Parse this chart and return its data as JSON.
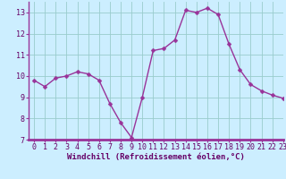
{
  "x": [
    0,
    1,
    2,
    3,
    4,
    5,
    6,
    7,
    8,
    9,
    10,
    11,
    12,
    13,
    14,
    15,
    16,
    17,
    18,
    19,
    20,
    21,
    22,
    23
  ],
  "y": [
    9.8,
    9.5,
    9.9,
    10.0,
    10.2,
    10.1,
    9.8,
    8.7,
    7.8,
    7.1,
    9.0,
    11.2,
    11.3,
    11.7,
    13.1,
    13.0,
    13.2,
    12.9,
    11.5,
    10.3,
    9.6,
    9.3,
    9.1,
    8.95
  ],
  "line_color": "#993399",
  "marker_color": "#993399",
  "bg_color": "#cceeff",
  "grid_color": "#99cccc",
  "xlabel": "Windchill (Refroidissement éolien,°C)",
  "ylim": [
    7,
    13.5
  ],
  "xlim": [
    -0.5,
    23
  ],
  "yticks": [
    7,
    8,
    9,
    10,
    11,
    12,
    13
  ],
  "xticks": [
    0,
    1,
    2,
    3,
    4,
    5,
    6,
    7,
    8,
    9,
    10,
    11,
    12,
    13,
    14,
    15,
    16,
    17,
    18,
    19,
    20,
    21,
    22,
    23
  ],
  "xlabel_fontsize": 6.5,
  "tick_fontsize": 6,
  "marker_size": 2.5,
  "line_width": 1.0,
  "axis_line_color": "#993399"
}
